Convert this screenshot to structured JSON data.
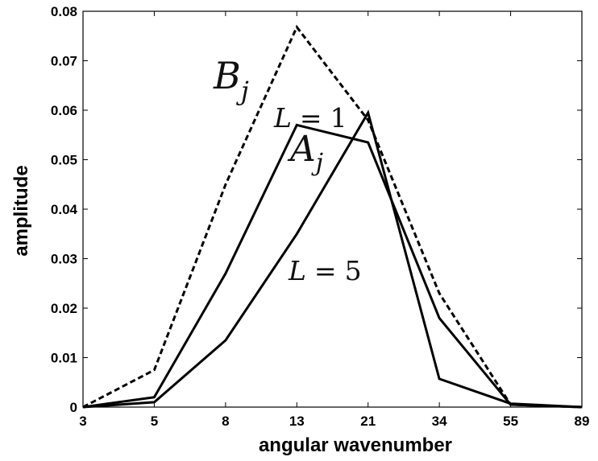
{
  "chart_data": {
    "type": "line",
    "xlabel": "angular wavenumber",
    "ylabel": "amplitude",
    "x": [
      3,
      5,
      8,
      13,
      21,
      34,
      55,
      89
    ],
    "x_tick_labels": [
      "3",
      "5",
      "8",
      "13",
      "21",
      "34",
      "55",
      "89"
    ],
    "x_scale": "categorical (Fibonacci wavenumbers, evenly spaced)",
    "ylim": [
      0,
      0.08
    ],
    "y_ticks": [
      0,
      0.01,
      0.02,
      0.03,
      0.04,
      0.05,
      0.06,
      0.07,
      0.08
    ],
    "y_tick_labels": [
      "0",
      "0.01",
      "0.02",
      "0.03",
      "0.04",
      "0.05",
      "0.06",
      "0.07",
      "0.08"
    ],
    "grid": false,
    "legend": "none",
    "series": [
      {
        "values": [
          0,
          0.0075,
          0.045,
          0.0768,
          0.058,
          0.023,
          0.0005,
          0
        ],
        "style": "dashed",
        "color": "#000000"
      },
      {
        "values": [
          0,
          0.002,
          0.027,
          0.057,
          0.0535,
          0.018,
          0.0005,
          0
        ],
        "style": "solid",
        "color": "#000000"
      },
      {
        "values": [
          0,
          0.001,
          0.0135,
          0.035,
          0.0595,
          0.0057,
          0.0007,
          0
        ],
        "style": "solid",
        "color": "#000000"
      }
    ],
    "annotations": [
      {
        "id": "b",
        "base": "B",
        "sub": "j"
      },
      {
        "id": "l1",
        "lhs": "L",
        "op": "=",
        "rhs": "1"
      },
      {
        "id": "a",
        "base": "A",
        "sub": "j"
      },
      {
        "id": "l5",
        "lhs": "L",
        "op": "=",
        "rhs": "5"
      }
    ]
  }
}
